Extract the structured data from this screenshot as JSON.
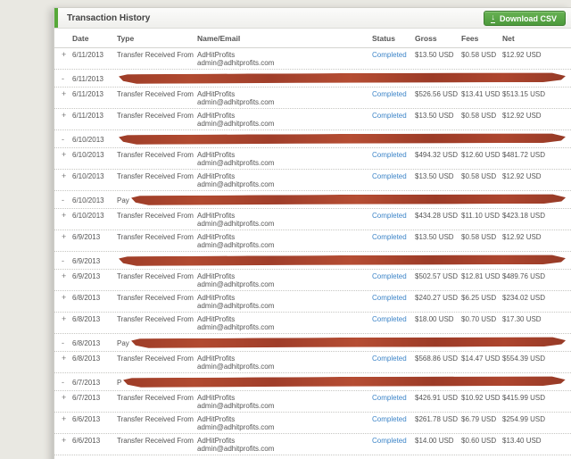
{
  "panel": {
    "title": "Transaction History",
    "download_label": "Download CSV",
    "download_icon": "↓"
  },
  "colors": {
    "accent_green": "#56a839",
    "button_green": "#4c9a3c",
    "status_link_blue": "#3d85c8",
    "redaction_red": "#a8422c",
    "page_background": "#e9e8e2"
  },
  "table": {
    "columns": [
      "Date",
      "Type",
      "Name/Email",
      "Status",
      "Gross",
      "Fees",
      "Net"
    ],
    "rows": [
      {
        "redacted": false,
        "expander": "+",
        "date": "6/11/2013",
        "type": "Transfer Received From",
        "name": "AdHitProfits",
        "email": "admin@adhitprofits.com",
        "status": "Completed",
        "gross": "$13.50 USD",
        "fees": "$0.58 USD",
        "net": "$12.92 USD"
      },
      {
        "redacted": true,
        "expander": "-",
        "date": "6/11/2013",
        "type_prefix": ""
      },
      {
        "redacted": false,
        "expander": "+",
        "date": "6/11/2013",
        "type": "Transfer Received From",
        "name": "AdHitProfits",
        "email": "admin@adhitprofits.com",
        "status": "Completed",
        "gross": "$526.56 USD",
        "fees": "$13.41 USD",
        "net": "$513.15 USD"
      },
      {
        "redacted": false,
        "expander": "+",
        "date": "6/11/2013",
        "type": "Transfer Received From",
        "name": "AdHitProfits",
        "email": "admin@adhitprofits.com",
        "status": "Completed",
        "gross": "$13.50 USD",
        "fees": "$0.58 USD",
        "net": "$12.92 USD"
      },
      {
        "redacted": true,
        "expander": "-",
        "date": "6/10/2013",
        "type_prefix": ""
      },
      {
        "redacted": false,
        "expander": "+",
        "date": "6/10/2013",
        "type": "Transfer Received From",
        "name": "AdHitProfits",
        "email": "admin@adhitprofits.com",
        "status": "Completed",
        "gross": "$494.32 USD",
        "fees": "$12.60 USD",
        "net": "$481.72 USD"
      },
      {
        "redacted": false,
        "expander": "+",
        "date": "6/10/2013",
        "type": "Transfer Received From",
        "name": "AdHitProfits",
        "email": "admin@adhitprofits.com",
        "status": "Completed",
        "gross": "$13.50 USD",
        "fees": "$0.58 USD",
        "net": "$12.92 USD"
      },
      {
        "redacted": true,
        "expander": "-",
        "date": "6/10/2013",
        "type_prefix": "Pay"
      },
      {
        "redacted": false,
        "expander": "+",
        "date": "6/10/2013",
        "type": "Transfer Received From",
        "name": "AdHitProfits",
        "email": "admin@adhitprofits.com",
        "status": "Completed",
        "gross": "$434.28 USD",
        "fees": "$11.10 USD",
        "net": "$423.18 USD"
      },
      {
        "redacted": false,
        "expander": "+",
        "date": "6/9/2013",
        "type": "Transfer Received From",
        "name": "AdHitProfits",
        "email": "admin@adhitprofits.com",
        "status": "Completed",
        "gross": "$13.50 USD",
        "fees": "$0.58 USD",
        "net": "$12.92 USD"
      },
      {
        "redacted": true,
        "expander": "-",
        "date": "6/9/2013",
        "type_prefix": ""
      },
      {
        "redacted": false,
        "expander": "+",
        "date": "6/9/2013",
        "type": "Transfer Received From",
        "name": "AdHitProfits",
        "email": "admin@adhitprofits.com",
        "status": "Completed",
        "gross": "$502.57 USD",
        "fees": "$12.81 USD",
        "net": "$489.76 USD"
      },
      {
        "redacted": false,
        "expander": "+",
        "date": "6/8/2013",
        "type": "Transfer Received From",
        "name": "AdHitProfits",
        "email": "admin@adhitprofits.com",
        "status": "Completed",
        "gross": "$240.27 USD",
        "fees": "$6.25 USD",
        "net": "$234.02 USD"
      },
      {
        "redacted": false,
        "expander": "+",
        "date": "6/8/2013",
        "type": "Transfer Received From",
        "name": "AdHitProfits",
        "email": "admin@adhitprofits.com",
        "status": "Completed",
        "gross": "$18.00 USD",
        "fees": "$0.70 USD",
        "net": "$17.30 USD"
      },
      {
        "redacted": true,
        "expander": "-",
        "date": "6/8/2013",
        "type_prefix": "Pay"
      },
      {
        "redacted": false,
        "expander": "+",
        "date": "6/8/2013",
        "type": "Transfer Received From",
        "name": "AdHitProfits",
        "email": "admin@adhitprofits.com",
        "status": "Completed",
        "gross": "$568.86 USD",
        "fees": "$14.47 USD",
        "net": "$554.39 USD"
      },
      {
        "redacted": true,
        "expander": "-",
        "date": "6/7/2013",
        "type_prefix": "P"
      },
      {
        "redacted": false,
        "expander": "+",
        "date": "6/7/2013",
        "type": "Transfer Received From",
        "name": "AdHitProfits",
        "email": "admin@adhitprofits.com",
        "status": "Completed",
        "gross": "$426.91 USD",
        "fees": "$10.92 USD",
        "net": "$415.99 USD"
      },
      {
        "redacted": false,
        "expander": "+",
        "date": "6/6/2013",
        "type": "Transfer Received From",
        "name": "AdHitProfits",
        "email": "admin@adhitprofits.com",
        "status": "Completed",
        "gross": "$261.78 USD",
        "fees": "$6.79 USD",
        "net": "$254.99 USD"
      },
      {
        "redacted": false,
        "expander": "+",
        "date": "6/6/2013",
        "type": "Transfer Received From",
        "name": "AdHitProfits",
        "email": "admin@adhitprofits.com",
        "status": "Completed",
        "gross": "$14.00 USD",
        "fees": "$0.60 USD",
        "net": "$13.40 USD"
      }
    ]
  }
}
